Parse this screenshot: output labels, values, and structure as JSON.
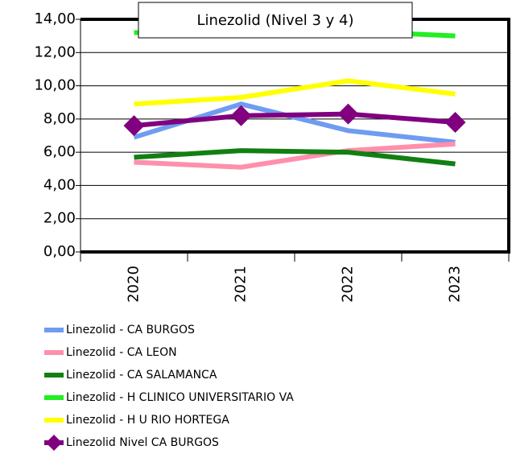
{
  "chart_data": {
    "type": "line",
    "title": "Linezolid (Nivel 3 y 4)",
    "categories": [
      "2020",
      "2021",
      "2022",
      "2023"
    ],
    "series": [
      {
        "name": "Linezolid -  CA BURGOS",
        "color": "#6f9cf0",
        "values": [
          6.9,
          8.9,
          7.3,
          6.6
        ]
      },
      {
        "name": "Linezolid -  CA LEON",
        "color": "#ff8fab",
        "values": [
          5.4,
          5.1,
          6.1,
          6.5
        ]
      },
      {
        "name": "Linezolid -  CA SALAMANCA",
        "color": "#118011",
        "values": [
          5.7,
          6.1,
          6.0,
          5.3
        ]
      },
      {
        "name": "Linezolid -  H CLINICO UNIVERSITARIO VA",
        "color": "#22ee22",
        "values": [
          13.2,
          13.3,
          13.3,
          13.0
        ]
      },
      {
        "name": "Linezolid -  H U RIO HORTEGA",
        "color": "#ffff00",
        "values": [
          8.9,
          9.3,
          10.3,
          9.5
        ]
      },
      {
        "name": "Linezolid Nivel  CA BURGOS",
        "color": "#800080",
        "marker": "diamond",
        "values": [
          7.6,
          8.2,
          8.3,
          7.8
        ]
      }
    ],
    "ylim": [
      0,
      14
    ],
    "yticks": [
      {
        "value": 0,
        "label": "0,00"
      },
      {
        "value": 2,
        "label": "2,00"
      },
      {
        "value": 4,
        "label": "4,00"
      },
      {
        "value": 6,
        "label": "6,00"
      },
      {
        "value": 8,
        "label": "8,00"
      },
      {
        "value": 10,
        "label": "10,00"
      },
      {
        "value": 12,
        "label": "12,00"
      },
      {
        "value": 14,
        "label": "14,00"
      }
    ],
    "grid": true
  }
}
